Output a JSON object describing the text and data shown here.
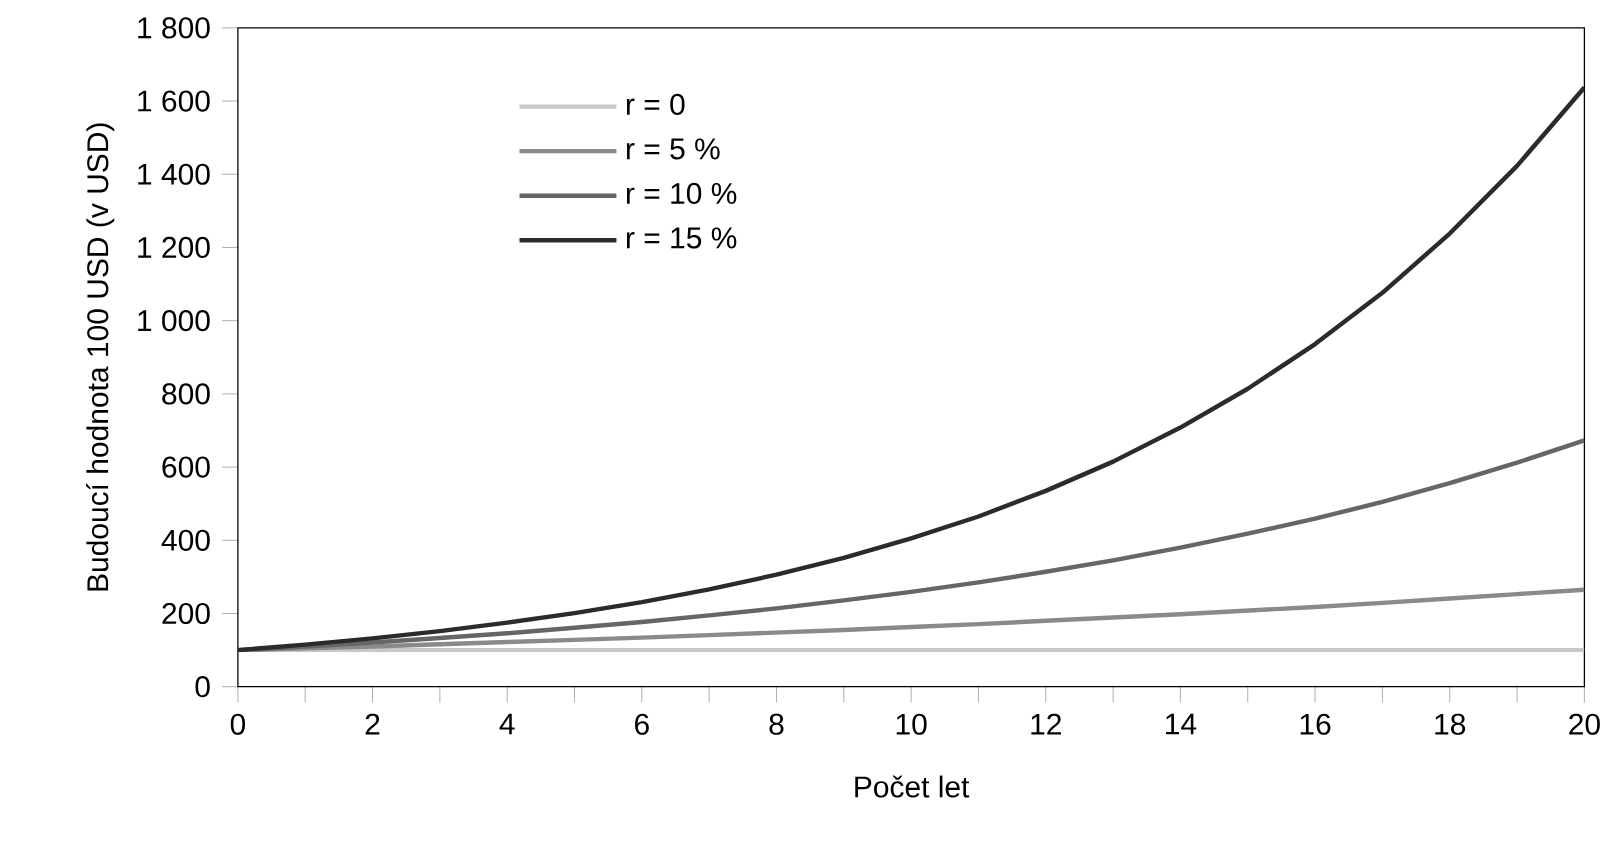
{
  "chart_data": {
    "type": "line",
    "xlabel": "Počet let",
    "ylabel": "Budoucí hodnota 100 USD (v USD)",
    "x": [
      0,
      1,
      2,
      3,
      4,
      5,
      6,
      7,
      8,
      9,
      10,
      11,
      12,
      13,
      14,
      15,
      16,
      17,
      18,
      19,
      20
    ],
    "series": [
      {
        "name": "r = 0",
        "color": "#c8c8c8",
        "values": [
          100,
          100,
          100,
          100,
          100,
          100,
          100,
          100,
          100,
          100,
          100,
          100,
          100,
          100,
          100,
          100,
          100,
          100,
          100,
          100,
          100
        ]
      },
      {
        "name": "r = 5 %",
        "color": "#8a8a8a",
        "values": [
          100,
          105,
          110,
          116,
          122,
          128,
          134,
          141,
          148,
          155,
          163,
          171,
          180,
          189,
          198,
          208,
          218,
          229,
          241,
          253,
          265
        ]
      },
      {
        "name": "r = 10 %",
        "color": "#666666",
        "values": [
          100,
          110,
          121,
          133,
          146,
          161,
          177,
          195,
          214,
          236,
          259,
          285,
          314,
          345,
          380,
          418,
          459,
          505,
          556,
          612,
          673
        ]
      },
      {
        "name": "r = 15 %",
        "color": "#2b2b2b",
        "values": [
          100,
          115,
          132,
          152,
          175,
          201,
          231,
          266,
          306,
          352,
          405,
          465,
          535,
          615,
          708,
          814,
          936,
          1076,
          1238,
          1423,
          1637
        ]
      }
    ],
    "xlim": [
      0,
      20
    ],
    "xticks": [
      0,
      {
        "value": 1,
        "label": null
      },
      2,
      {
        "value": 3,
        "label": null
      },
      4,
      {
        "value": 5,
        "label": null
      },
      6,
      {
        "value": 7,
        "label": null
      },
      8,
      {
        "value": 9,
        "label": null
      },
      10,
      {
        "value": 11,
        "label": null
      },
      12,
      {
        "value": 13,
        "label": null
      },
      14,
      {
        "value": 15,
        "label": null
      },
      16,
      {
        "value": 17,
        "label": null
      },
      18,
      {
        "value": 19,
        "label": null
      },
      20
    ],
    "ylim": [
      0,
      1800
    ],
    "yticks": [
      0,
      200,
      400,
      600,
      800,
      {
        "value": 1000,
        "label": "1 000"
      },
      {
        "value": 1200,
        "label": "1 200"
      },
      {
        "value": 1400,
        "label": "1 400"
      },
      {
        "value": 1600,
        "label": "1 600"
      },
      {
        "value": 1800,
        "label": "1 800"
      }
    ],
    "legend": "top left",
    "grid": false,
    "marker": "none",
    "line_style": "solid"
  }
}
